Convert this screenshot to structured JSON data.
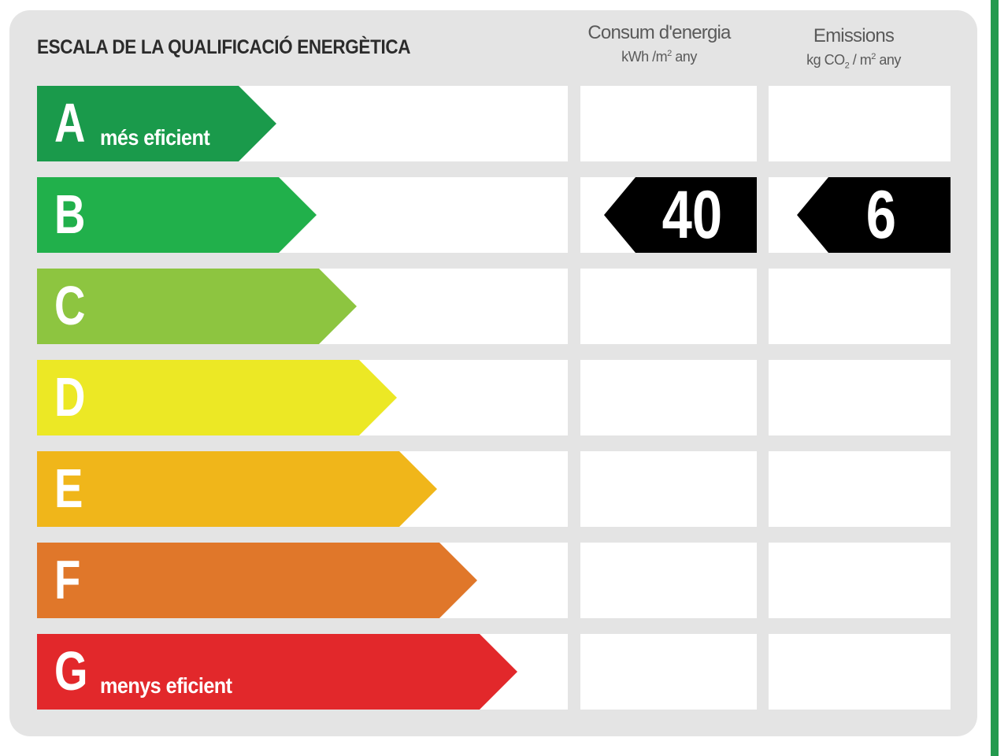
{
  "title": "ESCALA DE LA QUALIFICACIÓ ENERGÈTICA",
  "columns": {
    "consum": {
      "title": "Consum d'energia",
      "unit_prefix": "kWh /m",
      "unit_sup": "2",
      "unit_suffix": " any"
    },
    "emissions": {
      "title": "Emissions",
      "unit_prefix": "kg CO",
      "unit_sub": "2",
      "unit_mid": " / m",
      "unit_sup": "2",
      "unit_suffix": " any"
    }
  },
  "classes": [
    {
      "letter": "A",
      "caption": "més eficient",
      "color": "#1a9a4b"
    },
    {
      "letter": "B",
      "caption": "",
      "color": "#21b04b"
    },
    {
      "letter": "C",
      "caption": "",
      "color": "#8dc540"
    },
    {
      "letter": "D",
      "caption": "",
      "color": "#ece825"
    },
    {
      "letter": "E",
      "caption": "",
      "color": "#f0b61a"
    },
    {
      "letter": "F",
      "caption": "",
      "color": "#e0772a"
    },
    {
      "letter": "G",
      "caption": "menys eficient",
      "color": "#e2282b"
    }
  ],
  "rating": {
    "class": "B",
    "consum_value": "40",
    "emissions_value": "6"
  }
}
